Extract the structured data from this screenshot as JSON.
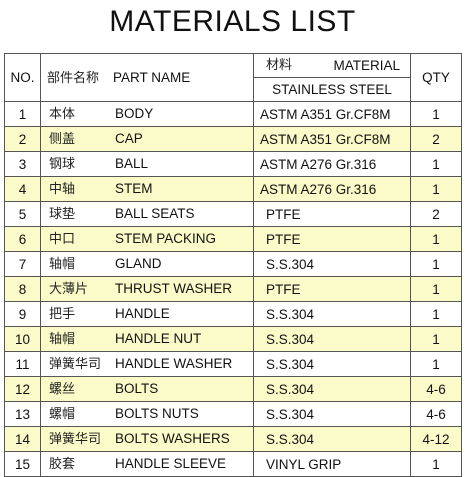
{
  "title": "MATERIALS LIST",
  "header": {
    "no": "NO.",
    "part_name_zh": "部件名称",
    "part_name_en": "PART NAME",
    "material_zh": "材料",
    "material_en": "MATERIAL",
    "material_sub": "STAINLESS STEEL",
    "qty": "QTY"
  },
  "highlight_color": "#fbfbc9",
  "rows": [
    {
      "no": "1",
      "zh": "本体",
      "en": "BODY",
      "material": "ASTM A351 Gr.CF8M",
      "qty": "1",
      "highlight": false
    },
    {
      "no": "2",
      "zh": "侧盖",
      "en": "CAP",
      "material": "ASTM A351 Gr.CF8M",
      "qty": "2",
      "highlight": true
    },
    {
      "no": "3",
      "zh": "钢球",
      "en": "BALL",
      "material": "ASTM A276 Gr.316",
      "qty": "1",
      "highlight": false
    },
    {
      "no": "4",
      "zh": "中轴",
      "en": "STEM",
      "material": "ASTM A276 Gr.316",
      "qty": "1",
      "highlight": true
    },
    {
      "no": "5",
      "zh": "球垫",
      "en": "BALL SEATS",
      "material": "PTFE",
      "qty": "2",
      "highlight": false
    },
    {
      "no": "6",
      "zh": "中口",
      "en": "STEM PACKING",
      "material": "PTFE",
      "qty": "1",
      "highlight": true
    },
    {
      "no": "7",
      "zh": "轴帽",
      "en": "GLAND",
      "material": "S.S.304",
      "qty": "1",
      "highlight": false
    },
    {
      "no": "8",
      "zh": "大薄片",
      "en": "THRUST WASHER",
      "material": "PTFE",
      "qty": "1",
      "highlight": true
    },
    {
      "no": "9",
      "zh": "把手",
      "en": "HANDLE",
      "material": "S.S.304",
      "qty": "1",
      "highlight": false
    },
    {
      "no": "10",
      "zh": "轴帽",
      "en": "HANDLE NUT",
      "material": "S.S.304",
      "qty": "1",
      "highlight": true
    },
    {
      "no": "11",
      "zh": "弹簧华司",
      "en": "HANDLE WASHER",
      "material": "S.S.304",
      "qty": "1",
      "highlight": false
    },
    {
      "no": "12",
      "zh": "螺丝",
      "en": "BOLTS",
      "material": "S.S.304",
      "qty": "4-6",
      "highlight": true
    },
    {
      "no": "13",
      "zh": "螺帽",
      "en": "BOLTS NUTS",
      "material": "S.S.304",
      "qty": "4-6",
      "highlight": false
    },
    {
      "no": "14",
      "zh": "弹簧华司",
      "en": "BOLTS WASHERS",
      "material": "S.S.304",
      "qty": "4-12",
      "highlight": true
    },
    {
      "no": "15",
      "zh": "胶套",
      "en": "HANDLE SLEEVE",
      "material": "VINYL GRIP",
      "qty": "1",
      "highlight": false
    }
  ]
}
